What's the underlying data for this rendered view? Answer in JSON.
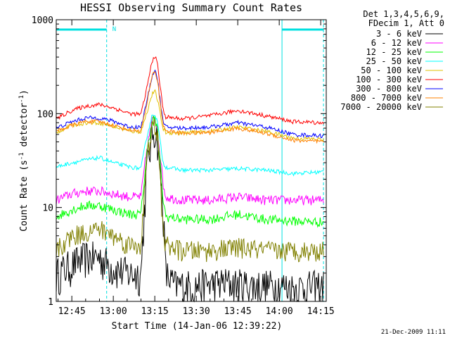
{
  "chart_data": {
    "type": "line",
    "title": "HESSI Observing Summary Count Rates",
    "xlabel": "Start Time (14-Jan-06 12:39:22)",
    "ylabel_main": "Count Rate (s",
    "ylabel_sup1": "-1",
    "ylabel_mid": " detector",
    "ylabel_sup2": "-1",
    "ylabel_end": ")",
    "yscale": "log",
    "xlim": [
      39.37,
      137.0
    ],
    "ylim": [
      1,
      1000
    ],
    "x_units": "minutes after 12:00 on 14-Jan-06",
    "x_ticks": [
      {
        "value": 45,
        "label": "12:45"
      },
      {
        "value": 60,
        "label": "13:00"
      },
      {
        "value": 75,
        "label": "13:15"
      },
      {
        "value": 90,
        "label": "13:30"
      },
      {
        "value": 105,
        "label": "13:45"
      },
      {
        "value": 120,
        "label": "14:00"
      },
      {
        "value": 135,
        "label": "14:15"
      }
    ],
    "y_ticks": [
      {
        "value": 1,
        "label": "1"
      },
      {
        "value": 10,
        "label": "10"
      },
      {
        "value": 100,
        "label": "100"
      },
      {
        "value": 1000,
        "label": "1000"
      }
    ],
    "legend_header": [
      "Det 1,3,4,5,6,9,",
      "FDecim 1, Att 0"
    ],
    "legend_position": "right",
    "date_stamp": "21-Dec-2009 11:11",
    "flag_label": "N",
    "flag_color": "#00e0e0",
    "night_markers": [
      {
        "start": 39.37,
        "end": 57.6
      },
      {
        "start": 121.0,
        "end": 136.0
      }
    ],
    "series": [
      {
        "name": "3 - 6 keV",
        "color": "#000000",
        "points": [
          [
            39.4,
            2.0
          ],
          [
            45,
            2.5
          ],
          [
            50,
            3.0
          ],
          [
            55,
            3.0
          ],
          [
            60,
            2.3
          ],
          [
            66,
            2.0
          ],
          [
            70,
            2.0
          ],
          [
            72,
            25
          ],
          [
            74,
            60
          ],
          [
            75,
            70
          ],
          [
            76,
            55
          ],
          [
            78,
            10
          ],
          [
            79,
            2.0
          ],
          [
            82,
            1.5
          ],
          [
            90,
            1.5
          ],
          [
            100,
            1.6
          ],
          [
            110,
            1.5
          ],
          [
            120,
            1.5
          ],
          [
            125,
            1.4
          ],
          [
            136,
            1.5
          ]
        ]
      },
      {
        "name": "6 - 12 keV",
        "color": "#ff00ff",
        "points": [
          [
            39.4,
            12
          ],
          [
            45,
            14
          ],
          [
            50,
            15
          ],
          [
            55,
            15
          ],
          [
            60,
            14
          ],
          [
            66,
            13
          ],
          [
            70,
            13
          ],
          [
            72,
            40
          ],
          [
            74,
            85
          ],
          [
            75,
            90
          ],
          [
            76,
            70
          ],
          [
            78,
            18
          ],
          [
            79,
            13
          ],
          [
            85,
            12
          ],
          [
            95,
            12
          ],
          [
            105,
            13
          ],
          [
            115,
            12
          ],
          [
            125,
            12
          ],
          [
            136,
            12
          ]
        ]
      },
      {
        "name": "12 - 25 keV",
        "color": "#00ff00",
        "points": [
          [
            39.4,
            8
          ],
          [
            45,
            9.5
          ],
          [
            50,
            10.5
          ],
          [
            55,
            10.5
          ],
          [
            60,
            9.5
          ],
          [
            66,
            8.5
          ],
          [
            70,
            8.5
          ],
          [
            72,
            35
          ],
          [
            74,
            85
          ],
          [
            75,
            90
          ],
          [
            76,
            65
          ],
          [
            78,
            12
          ],
          [
            79,
            8
          ],
          [
            85,
            7.5
          ],
          [
            95,
            7.5
          ],
          [
            105,
            8.5
          ],
          [
            115,
            7.5
          ],
          [
            125,
            7.2
          ],
          [
            136,
            7
          ]
        ]
      },
      {
        "name": "25 - 50 keV",
        "color": "#00ffff",
        "points": [
          [
            39.4,
            27
          ],
          [
            45,
            30
          ],
          [
            50,
            32
          ],
          [
            55,
            34
          ],
          [
            60,
            30
          ],
          [
            66,
            27
          ],
          [
            70,
            26
          ],
          [
            72,
            55
          ],
          [
            74,
            95
          ],
          [
            75,
            100
          ],
          [
            76,
            80
          ],
          [
            78,
            30
          ],
          [
            79,
            27
          ],
          [
            85,
            25
          ],
          [
            95,
            25
          ],
          [
            105,
            26
          ],
          [
            115,
            25
          ],
          [
            125,
            23
          ],
          [
            136,
            24
          ]
        ]
      },
      {
        "name": "50 - 100 keV",
        "color": "#e0c000",
        "points": [
          [
            39.4,
            63
          ],
          [
            45,
            75
          ],
          [
            50,
            80
          ],
          [
            55,
            80
          ],
          [
            60,
            73
          ],
          [
            66,
            65
          ],
          [
            70,
            64
          ],
          [
            72,
            100
          ],
          [
            74,
            160
          ],
          [
            75,
            175
          ],
          [
            76,
            140
          ],
          [
            78,
            68
          ],
          [
            79,
            63
          ],
          [
            85,
            62
          ],
          [
            95,
            65
          ],
          [
            105,
            72
          ],
          [
            115,
            65
          ],
          [
            125,
            55
          ],
          [
            136,
            53
          ]
        ]
      },
      {
        "name": "100 - 300 keV",
        "color": "#ff0000",
        "points": [
          [
            39.4,
            88
          ],
          [
            45,
            108
          ],
          [
            50,
            120
          ],
          [
            55,
            125
          ],
          [
            60,
            115
          ],
          [
            66,
            100
          ],
          [
            70,
            98
          ],
          [
            72,
            180
          ],
          [
            74,
            360
          ],
          [
            75,
            420
          ],
          [
            76,
            330
          ],
          [
            78,
            110
          ],
          [
            79,
            92
          ],
          [
            85,
            88
          ],
          [
            95,
            95
          ],
          [
            105,
            108
          ],
          [
            115,
            95
          ],
          [
            125,
            82
          ],
          [
            136,
            80
          ]
        ]
      },
      {
        "name": "300 - 800 keV",
        "color": "#0000ff",
        "points": [
          [
            39.4,
            70
          ],
          [
            45,
            82
          ],
          [
            50,
            90
          ],
          [
            55,
            90
          ],
          [
            60,
            83
          ],
          [
            66,
            72
          ],
          [
            70,
            72
          ],
          [
            72,
            130
          ],
          [
            74,
            250
          ],
          [
            75,
            300
          ],
          [
            76,
            230
          ],
          [
            78,
            80
          ],
          [
            79,
            72
          ],
          [
            85,
            70
          ],
          [
            95,
            72
          ],
          [
            105,
            80
          ],
          [
            115,
            72
          ],
          [
            125,
            60
          ],
          [
            136,
            58
          ]
        ]
      },
      {
        "name": "800 - 7000 keV",
        "color": "#ff8000",
        "points": [
          [
            39.4,
            65
          ],
          [
            45,
            75
          ],
          [
            50,
            83
          ],
          [
            55,
            82
          ],
          [
            60,
            75
          ],
          [
            66,
            67
          ],
          [
            70,
            66
          ],
          [
            72,
            120
          ],
          [
            74,
            250
          ],
          [
            75,
            290
          ],
          [
            76,
            220
          ],
          [
            78,
            75
          ],
          [
            79,
            66
          ],
          [
            85,
            62
          ],
          [
            95,
            63
          ],
          [
            105,
            70
          ],
          [
            115,
            62
          ],
          [
            125,
            52
          ],
          [
            136,
            50
          ]
        ]
      },
      {
        "name": "7000 - 20000 keV",
        "color": "#808000",
        "points": [
          [
            39.4,
            3.5
          ],
          [
            45,
            5.0
          ],
          [
            50,
            5.5
          ],
          [
            55,
            6.0
          ],
          [
            60,
            5.0
          ],
          [
            66,
            4.0
          ],
          [
            70,
            4.0
          ],
          [
            72,
            30
          ],
          [
            74,
            70
          ],
          [
            75,
            75
          ],
          [
            76,
            55
          ],
          [
            78,
            6
          ],
          [
            79,
            4.0
          ],
          [
            85,
            3.5
          ],
          [
            95,
            3.5
          ],
          [
            105,
            3.8
          ],
          [
            115,
            3.5
          ],
          [
            125,
            3.5
          ],
          [
            136,
            3.5
          ]
        ]
      }
    ]
  }
}
